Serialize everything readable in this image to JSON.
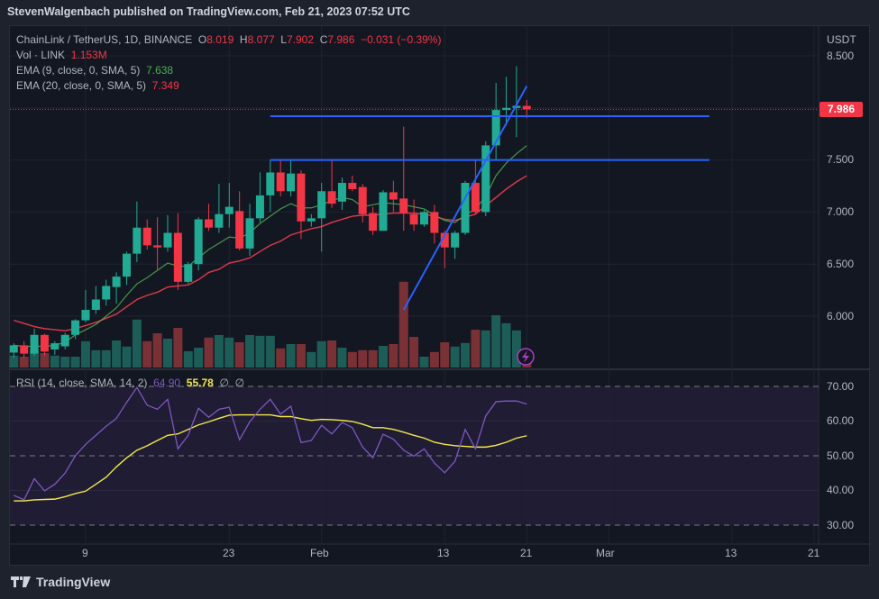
{
  "header": {
    "published": "StevenWalgenbach published on TradingView.com, Feb 21, 2023 07:52 UTC"
  },
  "legend": {
    "symbol": "ChainLink / TetherUS, 1D, BINANCE",
    "o_label": "O",
    "o": "8.019",
    "h_label": "H",
    "h": "8.077",
    "l_label": "L",
    "l": "7.902",
    "c_label": "C",
    "c": "7.986",
    "change": "−0.031 (−0.39%)",
    "vol_label": "Vol · LINK",
    "vol": "1.153M",
    "ema9_label": "EMA (9, close, 0, SMA, 5)",
    "ema9": "7.638",
    "ema20_label": "EMA (20, close, 0, SMA, 5)",
    "ema20": "7.349",
    "rsi_label": "RSI (14, close, SMA, 14, 2)",
    "rsi": "64.90",
    "rsi_sma": "55.78",
    "rsi_extra1": "∅",
    "rsi_extra2": "∅"
  },
  "price_axis": {
    "currency": "USDT",
    "ticks": [
      "8.500",
      "7.500",
      "7.000",
      "6.500",
      "6.000"
    ],
    "last_price": "7.986"
  },
  "rsi_axis": {
    "ticks": [
      "70.00",
      "60.00",
      "50.00",
      "40.00",
      "30.00"
    ]
  },
  "time_axis": {
    "ticks": [
      "9",
      "23",
      "Feb",
      "13",
      "21",
      "Mar",
      "13",
      "21"
    ]
  },
  "footer": {
    "brand": "TradingView"
  },
  "colors": {
    "up": "#22ab94",
    "down": "#f23645",
    "vol_up": "#1d5d57",
    "vol_down": "#7a3136",
    "ema9": "#4caf50",
    "ema20": "#e0394a",
    "rsi": "#7e57c2",
    "rsi_sma": "#f5e94a",
    "drawing": "#2962ff"
  },
  "chart_data": {
    "type": "candlestick",
    "title": "ChainLink / TetherUS, 1D, BINANCE",
    "start_date": "2023-01-02",
    "ylabel": "USDT",
    "ylim": [
      5.6,
      8.5
    ],
    "ohlc": [
      [
        5.65,
        5.74,
        5.6,
        5.72
      ],
      [
        5.72,
        5.76,
        5.6,
        5.64
      ],
      [
        5.64,
        5.88,
        5.62,
        5.82
      ],
      [
        5.82,
        5.83,
        5.62,
        5.66
      ],
      [
        5.68,
        5.76,
        5.63,
        5.74
      ],
      [
        5.71,
        5.84,
        5.68,
        5.82
      ],
      [
        5.82,
        5.97,
        5.78,
        5.96
      ],
      [
        5.96,
        6.25,
        5.94,
        6.06
      ],
      [
        6.06,
        6.29,
        6.02,
        6.16
      ],
      [
        6.16,
        6.35,
        6.1,
        6.29
      ],
      [
        6.28,
        6.42,
        6.12,
        6.38
      ],
      [
        6.38,
        6.62,
        6.3,
        6.6
      ],
      [
        6.6,
        7.1,
        6.52,
        6.85
      ],
      [
        6.85,
        6.93,
        6.64,
        6.68
      ],
      [
        6.68,
        6.95,
        6.44,
        6.66
      ],
      [
        6.66,
        6.97,
        6.62,
        6.8
      ],
      [
        6.8,
        6.99,
        6.25,
        6.33
      ],
      [
        6.33,
        6.52,
        6.31,
        6.5
      ],
      [
        6.5,
        6.95,
        6.44,
        6.93
      ],
      [
        6.93,
        7.08,
        6.82,
        6.85
      ],
      [
        6.85,
        7.27,
        6.8,
        6.98
      ],
      [
        6.98,
        7.28,
        6.85,
        7.05
      ],
      [
        7.01,
        7.2,
        6.63,
        6.65
      ],
      [
        6.65,
        7.08,
        6.58,
        6.94
      ],
      [
        6.94,
        7.38,
        6.9,
        7.16
      ],
      [
        7.16,
        7.5,
        7.0,
        7.38
      ],
      [
        7.38,
        7.5,
        7.15,
        7.2
      ],
      [
        7.2,
        7.5,
        7.15,
        7.37
      ],
      [
        7.37,
        7.4,
        6.74,
        6.91
      ],
      [
        6.91,
        6.98,
        6.86,
        6.94
      ],
      [
        6.94,
        7.28,
        6.62,
        7.2
      ],
      [
        7.2,
        7.5,
        7.04,
        7.08
      ],
      [
        7.1,
        7.33,
        7.02,
        7.28
      ],
      [
        7.28,
        7.35,
        7.2,
        7.22
      ],
      [
        7.24,
        7.27,
        6.9,
        6.98
      ],
      [
        6.99,
        7.05,
        6.78,
        6.82
      ],
      [
        6.82,
        7.21,
        6.82,
        7.19
      ],
      [
        7.19,
        7.3,
        7.0,
        7.12
      ],
      [
        7.13,
        7.82,
        6.82,
        6.99
      ],
      [
        6.98,
        7.12,
        6.82,
        6.88
      ],
      [
        6.88,
        7.02,
        6.86,
        7.0
      ],
      [
        7.0,
        7.07,
        6.7,
        6.8
      ],
      [
        6.8,
        6.82,
        6.46,
        6.66
      ],
      [
        6.66,
        6.82,
        6.55,
        6.8
      ],
      [
        6.8,
        7.3,
        6.78,
        7.28
      ],
      [
        7.28,
        7.5,
        6.98,
        7.0
      ],
      [
        7.0,
        7.68,
        6.96,
        7.64
      ],
      [
        7.64,
        8.24,
        7.5,
        7.98
      ],
      [
        7.98,
        8.3,
        7.83,
        8.0
      ],
      [
        8.0,
        8.4,
        7.72,
        8.02
      ],
      [
        8.019,
        8.077,
        7.902,
        7.986
      ]
    ],
    "volume_m": [
      3.3,
      3.0,
      5.0,
      4.0,
      3.3,
      3.0,
      3.0,
      7.3,
      4.8,
      4.8,
      7.5,
      5.8,
      13.3,
      7.3,
      9.5,
      8.0,
      11.0,
      4.5,
      5.5,
      8.3,
      9.0,
      8.3,
      7.0,
      9.0,
      8.8,
      8.8,
      5.3,
      6.5,
      6.5,
      4.3,
      7.3,
      7.5,
      5.5,
      4.3,
      4.8,
      4.8,
      6.0,
      6.5,
      23.8,
      8.5,
      3.0,
      4.3,
      7.0,
      5.8,
      6.8,
      10.5,
      10.3,
      14.5,
      12.3,
      10.3,
      1.153
    ],
    "ema9": [
      5.72,
      5.71,
      5.71,
      5.71,
      5.72,
      5.75,
      5.82,
      5.87,
      5.92,
      6.0,
      6.08,
      6.2,
      6.31,
      6.37,
      6.44,
      6.51,
      6.48,
      6.48,
      6.56,
      6.64,
      6.7,
      6.76,
      6.75,
      6.8,
      6.89,
      6.96,
      7.03,
      7.08,
      7.04,
      7.04,
      7.07,
      7.11,
      7.14,
      7.12,
      7.05,
      7.07,
      7.09,
      7.08,
      7.07,
      7.05,
      7.03,
      6.97,
      6.92,
      6.9,
      6.97,
      7.03,
      7.15,
      7.35,
      7.47,
      7.56,
      7.638
    ],
    "ema20": [
      5.96,
      5.93,
      5.9,
      5.88,
      5.87,
      5.86,
      5.88,
      5.91,
      5.94,
      5.98,
      6.02,
      6.09,
      6.16,
      6.2,
      6.23,
      6.28,
      6.29,
      6.3,
      6.35,
      6.42,
      6.45,
      6.51,
      6.53,
      6.56,
      6.62,
      6.68,
      6.72,
      6.78,
      6.81,
      6.84,
      6.86,
      6.9,
      6.93,
      6.96,
      6.97,
      6.97,
      6.98,
      6.99,
      6.99,
      6.99,
      6.98,
      6.96,
      6.93,
      6.92,
      6.95,
      6.98,
      7.06,
      7.14,
      7.22,
      7.29,
      7.349
    ],
    "rsi": [
      38.6,
      37.3,
      43.4,
      39.9,
      41.8,
      45.0,
      50.0,
      53.3,
      55.9,
      58.5,
      60.8,
      65.4,
      69.7,
      64.6,
      63.4,
      66.3,
      52.0,
      55.9,
      63.7,
      61.1,
      63.4,
      64.0,
      54.6,
      59.8,
      63.4,
      66.3,
      62.0,
      64.3,
      53.8,
      54.4,
      58.8,
      56.3,
      59.6,
      58.1,
      52.5,
      49.4,
      56.2,
      54.8,
      51.6,
      49.9,
      52.0,
      47.9,
      45.1,
      48.4,
      57.6,
      52.0,
      61.5,
      65.6,
      65.8,
      65.8,
      64.9
    ],
    "rsi_sma": [
      37.0,
      37.0,
      37.3,
      37.4,
      37.5,
      38.2,
      39.1,
      39.8,
      41.8,
      43.8,
      46.8,
      49.4,
      51.6,
      52.9,
      54.4,
      55.9,
      56.3,
      57.6,
      58.9,
      59.8,
      60.8,
      61.7,
      61.8,
      61.8,
      61.8,
      61.8,
      61.3,
      61.3,
      60.7,
      60.2,
      60.5,
      60.4,
      60.2,
      59.9,
      59.1,
      58.1,
      58.1,
      57.6,
      56.8,
      55.9,
      55.1,
      53.9,
      53.3,
      52.9,
      52.7,
      52.5,
      52.5,
      53.0,
      53.9,
      55.1,
      55.78
    ],
    "rsi_ylim": [
      30,
      70
    ],
    "rsi_levels": [
      70,
      50,
      30
    ],
    "drawings": [
      {
        "type": "horizontal",
        "price": 7.92,
        "from_day": 25,
        "to_day": 67.8
      },
      {
        "type": "horizontal",
        "price": 7.5,
        "from_day": 25,
        "to_day": 67.8
      },
      {
        "type": "trend",
        "from": [
          38.0,
          6.06
        ],
        "to": [
          50.0,
          8.21
        ]
      }
    ]
  }
}
